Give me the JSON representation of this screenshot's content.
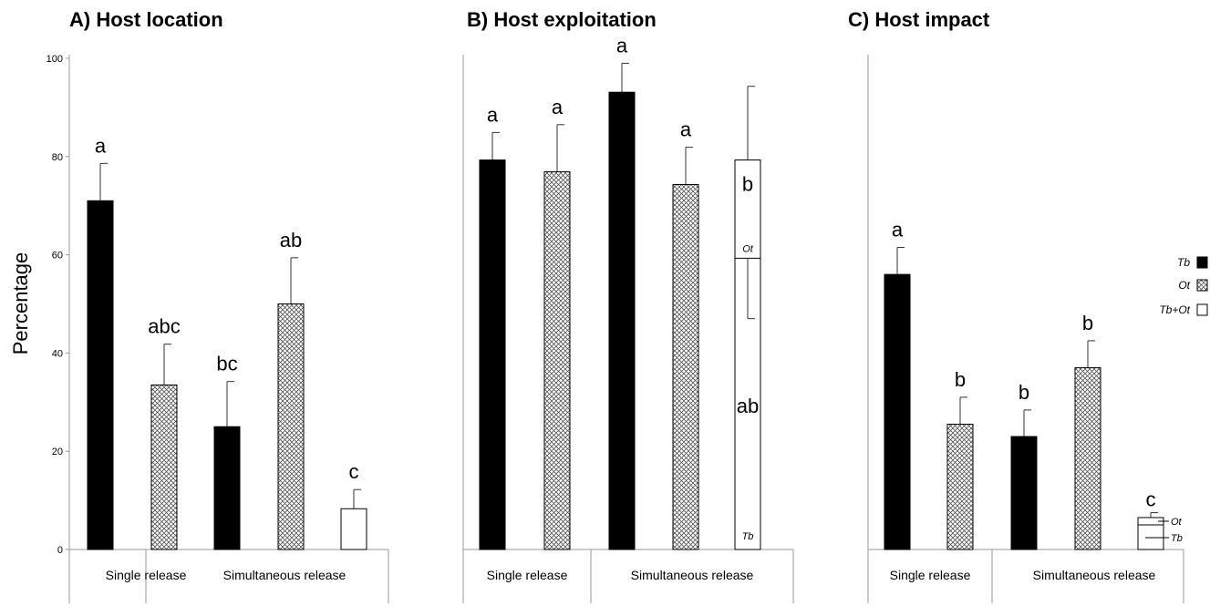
{
  "colors": {
    "Tb": "#000000",
    "Ot": "hatch",
    "Tb+Ot": "#ffffff"
  },
  "chart_data": [
    {
      "type": "bar",
      "title": "A) Host location",
      "ylabel": "Percentage",
      "ylim": [
        0,
        100
      ],
      "yticks": [
        "0",
        "20",
        "40",
        "60",
        "80",
        "100"
      ],
      "groups": [
        "Single release",
        "Simultaneous release"
      ],
      "bars": [
        {
          "group": "Single release",
          "series": "Tb",
          "value": 71,
          "error": 7.6,
          "letter": "a"
        },
        {
          "group": "Single release",
          "series": "Ot",
          "value": 33.5,
          "error": 8.3,
          "letter": "abc"
        },
        {
          "group": "Simultaneous release",
          "series": "Tb",
          "value": 25,
          "error": 9.2,
          "letter": "bc"
        },
        {
          "group": "Simultaneous release",
          "series": "Ot",
          "value": 50,
          "error": 9.4,
          "letter": "ab"
        },
        {
          "group": "Simultaneous release",
          "series": "Tb+Ot",
          "value": 8.3,
          "error": 3.9,
          "letter": "c"
        }
      ]
    },
    {
      "type": "bar",
      "title": "B) Host exploitation",
      "ylim": [
        0,
        100
      ],
      "groups": [
        "Single release",
        "Simultaneous release"
      ],
      "bars": [
        {
          "group": "Single release",
          "series": "Tb",
          "value": 79.3,
          "error": 5.6,
          "letter": "a"
        },
        {
          "group": "Single release",
          "series": "Ot",
          "value": 76.9,
          "error": 9.6,
          "letter": "a"
        },
        {
          "group": "Simultaneous release",
          "series": "Tb",
          "value": 93.1,
          "error": 5.9,
          "letter": "a"
        },
        {
          "group": "Simultaneous release",
          "series": "Ot",
          "value": 74.3,
          "error": 7.6,
          "letter": "a"
        },
        {
          "group": "Simultaneous release",
          "series": "Tb+Ot",
          "value": 79.3,
          "stacked": true,
          "segments": [
            {
              "name": "Tb",
              "value": 59.3,
              "letter": "ab",
              "error_low": 12.3
            },
            {
              "name": "Ot",
              "value": 20,
              "letter": "b",
              "error_high": 15
            }
          ]
        }
      ]
    },
    {
      "type": "bar",
      "title": "C) Host impact",
      "ylim": [
        0,
        100
      ],
      "groups": [
        "Single release",
        "Simultaneous release"
      ],
      "legend": {
        "position": "right",
        "entries": [
          "Tb",
          "Ot",
          "Tb+Ot"
        ]
      },
      "bars": [
        {
          "group": "Single release",
          "series": "Tb",
          "value": 56,
          "error": 5.5,
          "letter": "a"
        },
        {
          "group": "Single release",
          "series": "Ot",
          "value": 25.5,
          "error": 5.5,
          "letter": "b"
        },
        {
          "group": "Simultaneous release",
          "series": "Tb",
          "value": 23,
          "error": 5.4,
          "letter": "b"
        },
        {
          "group": "Simultaneous release",
          "series": "Ot",
          "value": 37,
          "error": 5.5,
          "letter": "b"
        },
        {
          "group": "Simultaneous release",
          "series": "Tb+Ot",
          "value": 6.5,
          "stacked": true,
          "letter": "c",
          "segments": [
            {
              "name": "Tb",
              "value": 5
            },
            {
              "name": "Ot",
              "value": 1.5
            }
          ],
          "error_high": 1
        }
      ]
    }
  ]
}
